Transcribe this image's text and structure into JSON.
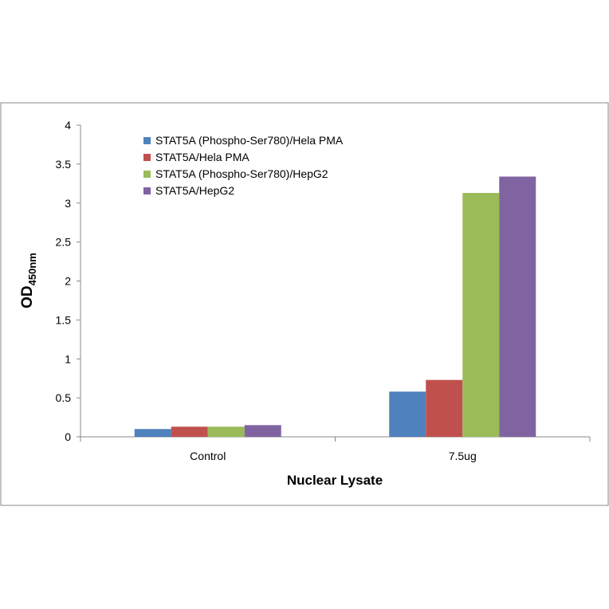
{
  "chart_data": {
    "type": "bar",
    "title": "",
    "xlabel": "Nuclear Lysate",
    "ylabel_main": "OD",
    "ylabel_sub": "450nm",
    "categories": [
      "Control",
      "7.5ug"
    ],
    "ylim": [
      0,
      4
    ],
    "yticks": [
      "0",
      "0.5",
      "1",
      "1.5",
      "2",
      "2.5",
      "3",
      "3.5",
      "4"
    ],
    "legend_position": "top-left",
    "series": [
      {
        "name": "STAT5A (Phospho-Ser780)/Hela PMA",
        "color": "#4f81bd",
        "values": [
          0.1,
          0.58
        ]
      },
      {
        "name": "STAT5A/Hela PMA",
        "color": "#c0504d",
        "values": [
          0.13,
          0.73
        ]
      },
      {
        "name": "STAT5A (Phospho-Ser780)/HepG2",
        "color": "#9bbb59",
        "values": [
          0.13,
          3.13
        ]
      },
      {
        "name": "STAT5A/HepG2",
        "color": "#8064a2",
        "values": [
          0.15,
          3.34
        ]
      }
    ]
  }
}
